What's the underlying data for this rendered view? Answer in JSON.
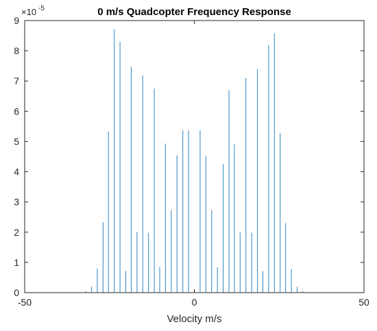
{
  "chart_data": {
    "type": "stem",
    "title": "0 m/s Quadcopter Frequency Response",
    "xlabel": "Velocity m/s",
    "ylabel": "",
    "xlim": [
      -50,
      50
    ],
    "ylim": [
      0,
      9
    ],
    "y_exponent_label": "×10",
    "y_exponent_power": "-5",
    "x_ticks": [
      -50,
      0,
      50
    ],
    "y_ticks": [
      0,
      1,
      2,
      3,
      4,
      5,
      6,
      7,
      8,
      9
    ],
    "x_tick_labels": [
      "-50",
      "0",
      "50"
    ],
    "y_tick_labels": [
      "0",
      "1",
      "2",
      "3",
      "4",
      "5",
      "6",
      "7",
      "8",
      "9"
    ],
    "grid": false,
    "box": true,
    "series_color": "#3f8fc4",
    "x": [
      -32.0,
      -30.3,
      -28.6,
      -26.9,
      -25.3,
      -23.6,
      -21.9,
      -20.2,
      -18.6,
      -16.9,
      -15.2,
      -13.5,
      -11.8,
      -10.2,
      -8.5,
      -6.8,
      -5.1,
      -3.4,
      -1.7,
      0.0,
      1.7,
      3.4,
      5.1,
      6.8,
      8.5,
      10.2,
      11.8,
      13.5,
      15.2,
      16.9,
      18.6,
      20.2,
      21.9,
      23.6,
      25.3,
      26.9,
      28.6,
      30.3,
      32.0
    ],
    "y": [
      0.05,
      0.2,
      0.8,
      2.33,
      5.33,
      8.72,
      8.3,
      0.72,
      7.47,
      2.0,
      7.18,
      1.98,
      6.75,
      0.85,
      4.93,
      2.73,
      4.54,
      5.37,
      5.37,
      0.02,
      5.36,
      4.51,
      2.73,
      0.84,
      4.25,
      6.7,
      4.91,
      1.99,
      7.1,
      1.98,
      7.39,
      0.71,
      8.18,
      8.58,
      5.27,
      2.3,
      0.78,
      0.2,
      0.05
    ]
  }
}
